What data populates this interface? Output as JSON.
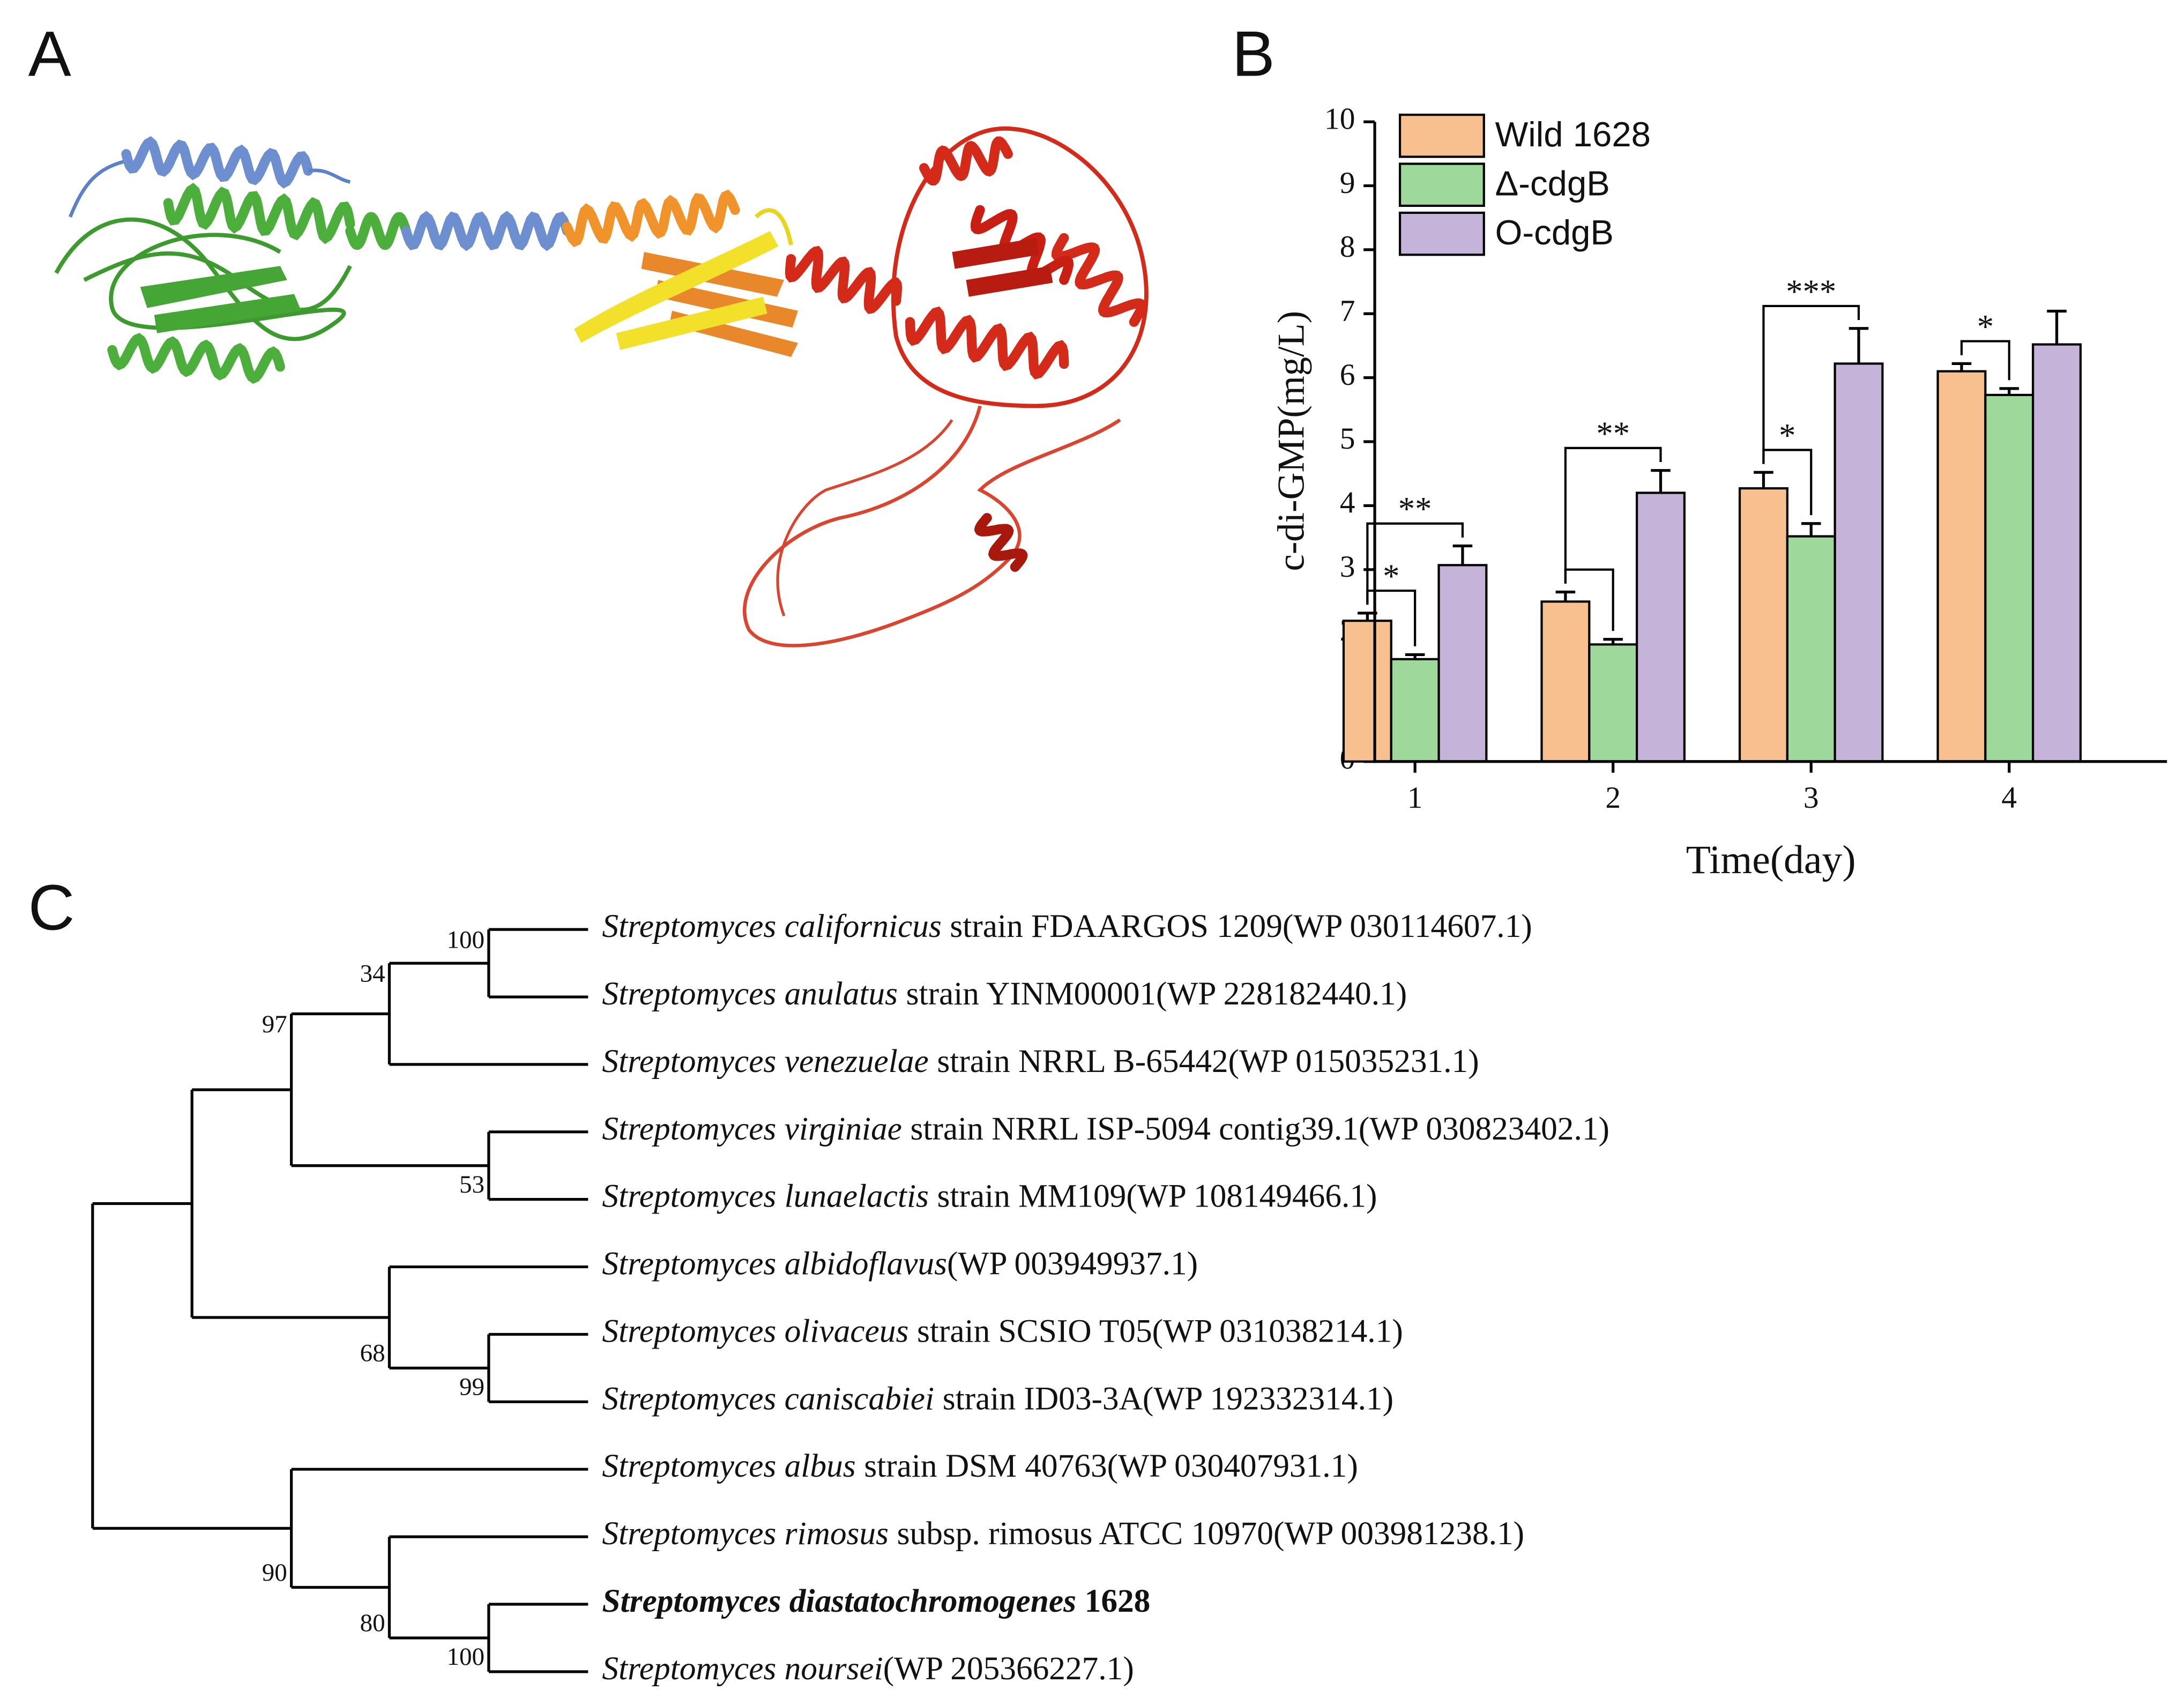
{
  "panel_labels": [
    "A",
    "B",
    "C"
  ],
  "chart_data": {
    "type": "bar",
    "categories": [
      "1",
      "2",
      "3",
      "4"
    ],
    "series": [
      {
        "name": "Wild 1628",
        "color": "#f9c08f",
        "values": [
          2.2,
          2.5,
          4.27,
          6.1
        ],
        "errors": [
          0.12,
          0.15,
          0.25,
          0.12
        ]
      },
      {
        "name": "Δ-cdgB",
        "color": "#9ed99b",
        "values": [
          1.6,
          1.83,
          3.52,
          5.73
        ],
        "errors": [
          0.07,
          0.08,
          0.2,
          0.1
        ]
      },
      {
        "name": "O-cdgB",
        "color": "#c5b3d9",
        "values": [
          3.07,
          4.2,
          6.22,
          6.52
        ],
        "errors": [
          0.3,
          0.35,
          0.55,
          0.52
        ]
      }
    ],
    "ylim": [
      0,
      10
    ],
    "yticks": [
      0,
      1,
      2,
      3,
      4,
      5,
      6,
      7,
      8,
      9,
      10
    ],
    "y_label": "c-di-GMP(mg/L)",
    "x_label": "Time(day)",
    "grid": false,
    "legend": "top-left",
    "annotations": [
      {
        "text": "*",
        "category": 0,
        "from": 0,
        "to": 1
      },
      {
        "text": "**",
        "category": 0,
        "from": 0,
        "to": 2
      },
      {
        "category": 1,
        "from": 0,
        "to": 1
      },
      {
        "text": "**",
        "category": 1,
        "from": 0,
        "to": 2
      },
      {
        "text": "*",
        "category": 2,
        "from": 0,
        "to": 1
      },
      {
        "text": "***",
        "category": 2,
        "from": 0,
        "to": 2
      },
      {
        "text": "*",
        "category": 3,
        "from": 0,
        "to": 1
      }
    ]
  },
  "tree": {
    "leaves": [
      {
        "species": "Streptomyces californicus",
        "strain": "strain FDAARGOS 1209(WP 030114607.1)"
      },
      {
        "species": "Streptomyces anulatus",
        "strain": "strain YINM00001(WP 228182440.1)"
      },
      {
        "species": "Streptomyces venezuelae",
        "strain": "strain NRRL B-65442(WP 015035231.1)"
      },
      {
        "species": "Streptomyces virginiae",
        "strain": "strain NRRL ISP-5094 contig39.1(WP 030823402.1)"
      },
      {
        "species": "Streptomyces lunaelactis",
        "strain": "strain MM109(WP 108149466.1)"
      },
      {
        "species": "Streptomyces albidoflavus",
        "strain": "(WP 003949937.1)"
      },
      {
        "species": "Streptomyces olivaceus",
        "strain": "strain SCSIO T05(WP 031038214.1)"
      },
      {
        "species": "Streptomyces caniscabiei",
        "strain": "strain ID03-3A(WP 192332314.1)"
      },
      {
        "species": "Streptomyces albus",
        "strain": "strain DSM 40763(WP 030407931.1)"
      },
      {
        "species": "Streptomyces rimosus",
        "strain": "subsp. rimosus ATCC 10970(WP 003981238.1)"
      },
      {
        "species": "Streptomyces diastatochromogenes",
        "strain": "1628",
        "bold": true
      },
      {
        "species": "Streptomyces noursei",
        "strain": "(WP 205366227.1)"
      }
    ],
    "nodes": [
      {
        "bootstrap": 100
      },
      {
        "bootstrap": 34
      },
      {
        "bootstrap": 97
      },
      {
        "bootstrap": 53
      },
      {
        "bootstrap": 68
      },
      {
        "bootstrap": 99
      },
      {
        "bootstrap": 90
      },
      {
        "bootstrap": 80
      },
      {
        "bootstrap": 100
      }
    ]
  }
}
